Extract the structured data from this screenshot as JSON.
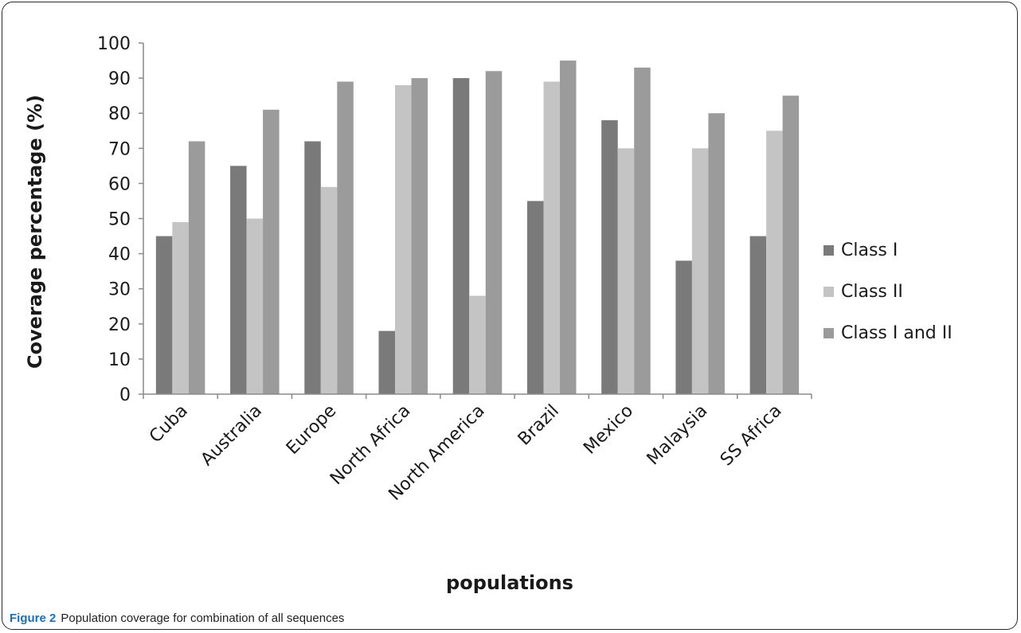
{
  "caption": {
    "figure_label": "Figure 2",
    "text": "Population coverage for combination of all sequences"
  },
  "chart_data": {
    "type": "bar",
    "title": "",
    "xlabel": "populations",
    "ylabel": "Coverage percentage (%)",
    "ylim": [
      0,
      100
    ],
    "yticks": [
      0,
      10,
      20,
      30,
      40,
      50,
      60,
      70,
      80,
      90,
      100
    ],
    "grid": false,
    "legend_position": "right",
    "categories": [
      "Cuba",
      "Australia",
      "Europe",
      "North Africa",
      "North America",
      "Brazil",
      "Mexico",
      "Malaysia",
      "SS Africa"
    ],
    "series": [
      {
        "name": "Class I",
        "color": "#7a7a7a",
        "values": [
          45,
          65,
          72,
          18,
          90,
          55,
          78,
          38,
          45
        ]
      },
      {
        "name": "Class II",
        "color": "#c4c4c4",
        "values": [
          49,
          50,
          59,
          88,
          28,
          89,
          70,
          70,
          75
        ]
      },
      {
        "name": "Class I and II",
        "color": "#9b9b9b",
        "values": [
          72,
          81,
          89,
          90,
          92,
          95,
          93,
          80,
          85
        ]
      }
    ]
  }
}
